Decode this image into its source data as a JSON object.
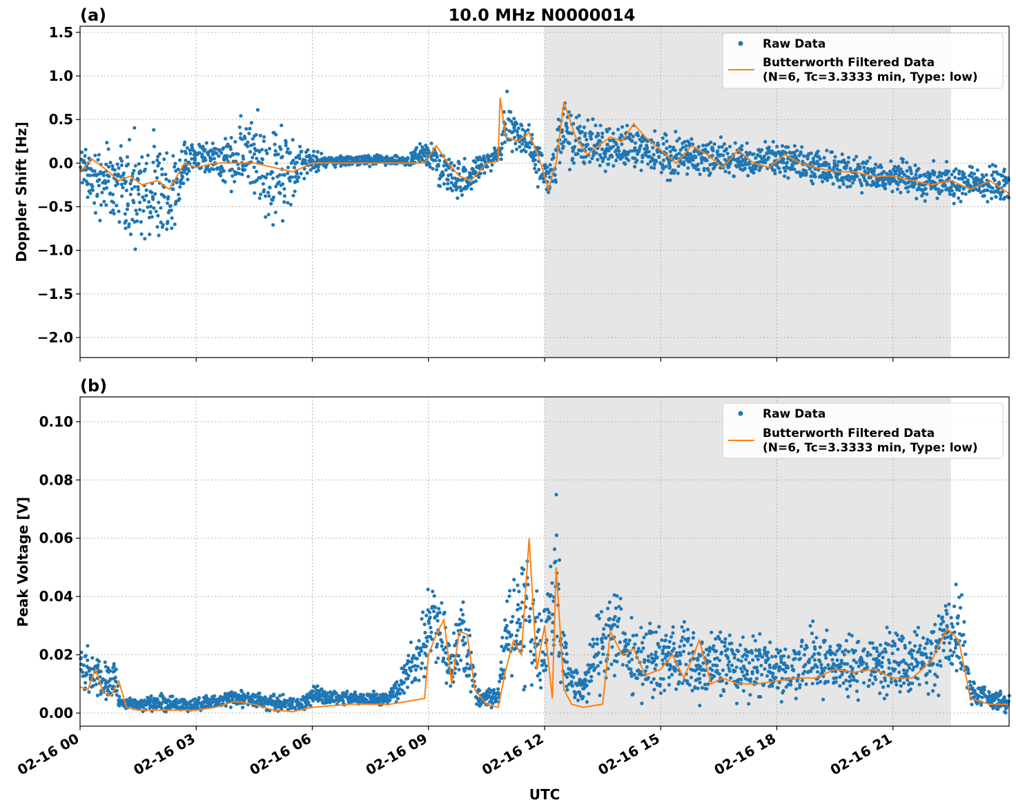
{
  "figure": {
    "title": "10.0 MHz N0000014",
    "xlabel": "UTC",
    "colors": {
      "raw": "#1f77b4",
      "filtered": "#ff7f0e",
      "shade": "#e6e6e6"
    }
  },
  "chart_data": [
    {
      "type": "scatter",
      "panel": "(a)",
      "title": "10.0 MHz N0000014",
      "ylabel": "Doppler Shift [Hz]",
      "xlabel": "",
      "xlim_hours": [
        0,
        24
      ],
      "ylim": [
        -2.23,
        1.57
      ],
      "yticks": [
        1.5,
        1.0,
        0.5,
        0.0,
        -0.5,
        -1.0,
        -1.5,
        -2.0
      ],
      "ytick_labels": [
        "1.5",
        "1.0",
        "0.5",
        "0.0",
        "−0.5",
        "−1.0",
        "−1.5",
        "−2.0"
      ],
      "xticks_hours": [
        0,
        3,
        6,
        9,
        12,
        15,
        18,
        21
      ],
      "shaded_region_hours": [
        12.0,
        22.5
      ],
      "grid": true,
      "legend_position": "upper right",
      "legend": [
        "Raw Data",
        "Butterworth Filtered Data",
        "(N=6, Tc=3.3333 min, Type: low)"
      ],
      "series": [
        {
          "name": "Raw Data",
          "style": "points",
          "envelope": {
            "x": [
              0,
              0.5,
              1.0,
              1.3,
              1.6,
              2.0,
              2.3,
              2.7,
              3.0,
              3.5,
              4.0,
              4.5,
              5.0,
              5.5,
              5.8,
              6.5,
              7.5,
              8.5,
              8.9,
              9.1,
              9.5,
              9.9,
              10.3,
              10.8,
              11.0,
              11.4,
              11.8,
              12.1,
              12.5,
              12.9,
              13.2,
              13.7,
              14.2,
              14.7,
              15.2,
              15.8,
              16.5,
              17.2,
              17.8,
              18.5,
              19.2,
              19.8,
              20.5,
              21.2,
              21.8,
              22.5,
              23.0,
              23.5,
              24.0
            ],
            "y_low": [
              -0.3,
              -0.8,
              -0.7,
              -1.2,
              -1.1,
              -1.3,
              -1.1,
              -0.3,
              -0.2,
              -0.2,
              -0.4,
              -0.7,
              -0.9,
              -0.6,
              -0.2,
              -0.05,
              -0.05,
              -0.05,
              -0.1,
              -0.25,
              -0.45,
              -0.5,
              -0.2,
              -0.05,
              0.05,
              0.0,
              -0.3,
              -0.45,
              -0.1,
              -0.1,
              -0.15,
              -0.1,
              -0.15,
              -0.2,
              -0.3,
              -0.25,
              -0.2,
              -0.2,
              -0.2,
              -0.25,
              -0.3,
              -0.35,
              -0.4,
              -0.4,
              -0.45,
              -0.5,
              -0.45,
              -0.5,
              -0.6
            ],
            "y_high": [
              0.25,
              0.3,
              0.25,
              0.5,
              0.4,
              0.5,
              0.35,
              0.3,
              0.35,
              0.25,
              0.5,
              0.7,
              0.6,
              0.6,
              0.2,
              0.1,
              0.1,
              0.1,
              0.3,
              0.4,
              0.2,
              0.1,
              0.1,
              0.2,
              0.9,
              0.6,
              0.4,
              0.1,
              0.85,
              0.6,
              0.55,
              0.5,
              0.55,
              0.45,
              0.4,
              0.4,
              0.35,
              0.25,
              0.3,
              0.25,
              0.2,
              0.15,
              0.1,
              0.1,
              0.05,
              0.05,
              0.0,
              0.0,
              0.05
            ]
          }
        },
        {
          "name": "Butterworth Filtered Data",
          "style": "line",
          "x": [
            0,
            0.3,
            0.6,
            1.0,
            1.3,
            1.6,
            2.0,
            2.3,
            2.7,
            3.0,
            3.5,
            4.0,
            4.5,
            5.0,
            5.5,
            6.0,
            7.0,
            8.0,
            8.9,
            9.2,
            9.5,
            9.8,
            10.1,
            10.5,
            10.8,
            10.85,
            11.0,
            11.3,
            11.6,
            11.9,
            12.1,
            12.3,
            12.5,
            12.8,
            13.1,
            13.4,
            13.7,
            14.0,
            14.3,
            14.6,
            15.0,
            15.4,
            15.8,
            16.2,
            16.6,
            17.0,
            17.4,
            17.8,
            18.2,
            18.6,
            19.0,
            19.5,
            20.0,
            20.5,
            21.0,
            21.5,
            22.0,
            22.5,
            23.0,
            23.5,
            24.0
          ],
          "y": [
            -0.1,
            0.05,
            -0.05,
            -0.2,
            -0.15,
            -0.25,
            -0.2,
            -0.3,
            0.0,
            -0.05,
            0.0,
            0.0,
            0.0,
            -0.05,
            -0.1,
            0.0,
            0.0,
            0.0,
            0.0,
            0.2,
            0.0,
            -0.15,
            -0.2,
            0.0,
            0.02,
            0.75,
            0.3,
            0.25,
            0.35,
            0.0,
            -0.3,
            0.0,
            0.7,
            0.3,
            0.1,
            0.2,
            0.3,
            0.25,
            0.45,
            0.3,
            0.15,
            0.0,
            0.2,
            0.1,
            -0.05,
            0.15,
            0.0,
            -0.05,
            0.1,
            0.0,
            -0.05,
            -0.1,
            -0.1,
            -0.15,
            -0.15,
            -0.2,
            -0.25,
            -0.2,
            -0.3,
            -0.2,
            -0.35
          ]
        }
      ]
    },
    {
      "type": "scatter",
      "panel": "(b)",
      "title": "",
      "ylabel": "Peak Voltage [V]",
      "xlabel": "UTC",
      "xlim_hours": [
        0,
        24
      ],
      "ylim": [
        -0.0045,
        0.1085
      ],
      "yticks": [
        0.1,
        0.08,
        0.06,
        0.04,
        0.02,
        0.0
      ],
      "ytick_labels": [
        "0.10",
        "0.08",
        "0.06",
        "0.04",
        "0.02",
        "0.00"
      ],
      "xticks_hours": [
        0,
        3,
        6,
        9,
        12,
        15,
        18,
        21
      ],
      "xtick_labels": [
        "02-16 00",
        "02-16 03",
        "02-16 06",
        "02-16 09",
        "02-16 12",
        "02-16 15",
        "02-16 18",
        "02-16 21"
      ],
      "shaded_region_hours": [
        12.0,
        22.5
      ],
      "grid": true,
      "legend_position": "upper right",
      "legend": [
        "Raw Data",
        "Butterworth Filtered Data",
        "(N=6, Tc=3.3333 min, Type: low)"
      ],
      "series": [
        {
          "name": "Raw Data",
          "style": "points",
          "envelope": {
            "x": [
              0,
              0.3,
              0.6,
              0.9,
              1.0,
              1.5,
              2.0,
              3.0,
              4.0,
              5.0,
              5.7,
              6.0,
              7.0,
              8.0,
              8.9,
              9.0,
              9.3,
              9.6,
              9.8,
              10.0,
              10.3,
              10.8,
              11.0,
              11.5,
              11.8,
              12.0,
              12.3,
              12.6,
              13.0,
              13.6,
              13.8,
              14.2,
              14.6,
              15.0,
              15.5,
              16.0,
              16.5,
              17.0,
              17.5,
              18.0,
              18.5,
              19.0,
              19.5,
              20.0,
              20.5,
              21.0,
              21.5,
              22.0,
              22.5,
              22.8,
              23.0,
              23.5,
              24.0
            ],
            "y_low": [
              0.002,
              0.003,
              0.003,
              0.004,
              0.001,
              0.0,
              0.0,
              0.0,
              0.001,
              0.0,
              0.0,
              0.002,
              0.002,
              0.002,
              0.005,
              0.01,
              0.008,
              0.005,
              0.008,
              0.005,
              0.001,
              0.001,
              0.005,
              0.005,
              0.003,
              0.003,
              0.005,
              0.003,
              0.002,
              0.003,
              0.005,
              0.004,
              0.002,
              0.003,
              0.002,
              0.002,
              0.003,
              0.002,
              0.002,
              0.003,
              0.002,
              0.002,
              0.002,
              0.002,
              0.002,
              0.002,
              0.002,
              0.003,
              0.005,
              0.004,
              0.001,
              0.0,
              0.0
            ],
            "y_high": [
              0.03,
              0.022,
              0.018,
              0.022,
              0.006,
              0.006,
              0.007,
              0.006,
              0.009,
              0.008,
              0.005,
              0.01,
              0.008,
              0.008,
              0.04,
              0.055,
              0.045,
              0.025,
              0.05,
              0.035,
              0.008,
              0.01,
              0.05,
              0.07,
              0.045,
              0.04,
              0.08,
              0.02,
              0.015,
              0.05,
              0.055,
              0.035,
              0.04,
              0.03,
              0.04,
              0.025,
              0.035,
              0.028,
              0.03,
              0.025,
              0.03,
              0.035,
              0.03,
              0.03,
              0.028,
              0.035,
              0.03,
              0.04,
              0.05,
              0.045,
              0.015,
              0.01,
              0.008
            ]
          }
        },
        {
          "name": "Butterworth Filtered Data",
          "style": "line",
          "x": [
            0,
            0.2,
            0.4,
            0.6,
            0.8,
            1.0,
            1.2,
            1.5,
            2.0,
            2.5,
            3.0,
            3.5,
            4.0,
            4.5,
            5.0,
            5.5,
            6.0,
            7.0,
            8.0,
            8.9,
            9.0,
            9.2,
            9.4,
            9.6,
            9.8,
            10.0,
            10.2,
            10.5,
            10.8,
            11.0,
            11.2,
            11.4,
            11.6,
            11.8,
            12.0,
            12.2,
            12.3,
            12.5,
            12.7,
            13.0,
            13.5,
            13.7,
            14.0,
            14.3,
            14.6,
            15.0,
            15.3,
            15.6,
            16.0,
            16.3,
            16.6,
            17.0,
            17.5,
            18.0,
            18.5,
            19.0,
            19.5,
            20.0,
            20.5,
            21.0,
            21.5,
            22.0,
            22.4,
            22.7,
            23.0,
            23.5,
            24.0
          ],
          "y": [
            0.009,
            0.008,
            0.015,
            0.007,
            0.006,
            0.011,
            0.002,
            0.001,
            0.001,
            0.001,
            0.001,
            0.002,
            0.004,
            0.003,
            0.001,
            0.0005,
            0.002,
            0.003,
            0.003,
            0.005,
            0.02,
            0.027,
            0.032,
            0.01,
            0.028,
            0.027,
            0.008,
            0.003,
            0.002,
            0.015,
            0.025,
            0.02,
            0.06,
            0.015,
            0.03,
            0.005,
            0.05,
            0.008,
            0.003,
            0.002,
            0.003,
            0.028,
            0.02,
            0.022,
            0.013,
            0.015,
            0.02,
            0.012,
            0.025,
            0.01,
            0.012,
            0.01,
            0.01,
            0.011,
            0.012,
            0.012,
            0.015,
            0.014,
            0.015,
            0.012,
            0.012,
            0.018,
            0.029,
            0.025,
            0.005,
            0.003,
            0.003
          ]
        }
      ]
    }
  ]
}
